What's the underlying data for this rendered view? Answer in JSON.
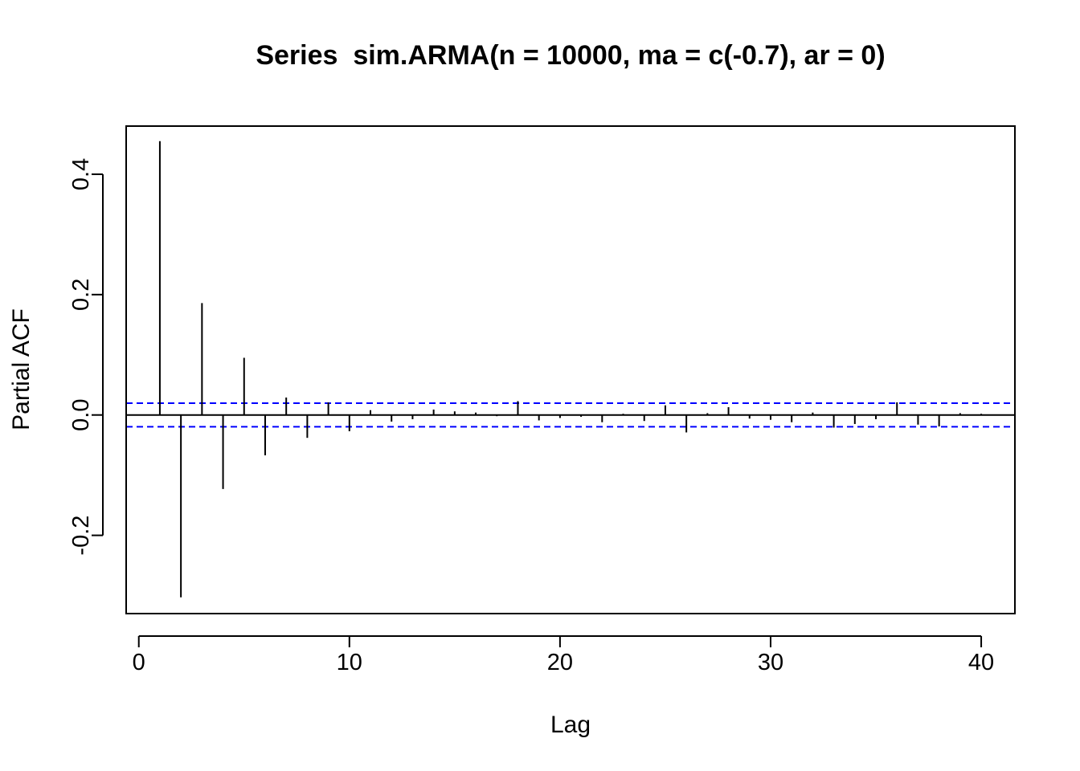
{
  "chart_data": {
    "type": "bar",
    "title": "Series  sim.ARMA(n = 10000, ma = c(-0.7), ar = 0)",
    "xlabel": "Lag",
    "ylabel": "Partial ACF",
    "xlim": [
      -0.6,
      41.6
    ],
    "ylim": [
      -0.33,
      0.48
    ],
    "x_ticks": [
      0,
      10,
      20,
      30,
      40
    ],
    "y_ticks": [
      -0.2,
      0.0,
      0.2,
      0.4
    ],
    "x_tick_labels": [
      "0",
      "10",
      "20",
      "30",
      "40"
    ],
    "y_tick_labels": [
      "-0.2",
      "0.0",
      "0.2",
      "0.4"
    ],
    "grid": false,
    "legend": "none",
    "lags": [
      1,
      2,
      3,
      4,
      5,
      6,
      7,
      8,
      9,
      10,
      11,
      12,
      13,
      14,
      15,
      16,
      17,
      18,
      19,
      20,
      21,
      22,
      23,
      24,
      25,
      26,
      27,
      28,
      29,
      30,
      31,
      32,
      33,
      34,
      35,
      36,
      37,
      38,
      39,
      40
    ],
    "pacf": [
      0.455,
      -0.303,
      0.186,
      -0.123,
      0.095,
      -0.067,
      0.029,
      -0.038,
      0.021,
      -0.027,
      0.008,
      -0.011,
      -0.007,
      0.009,
      0.006,
      0.004,
      -0.002,
      0.023,
      -0.009,
      -0.005,
      -0.003,
      -0.012,
      0.002,
      -0.01,
      0.016,
      -0.029,
      0.003,
      0.013,
      -0.006,
      -0.008,
      -0.012,
      0.004,
      -0.021,
      -0.015,
      -0.007,
      0.021,
      -0.016,
      -0.019,
      0.003,
      0.002
    ],
    "confidence_bound": 0.0196,
    "line_color": "#000000",
    "ci_color": "#0000ff"
  }
}
